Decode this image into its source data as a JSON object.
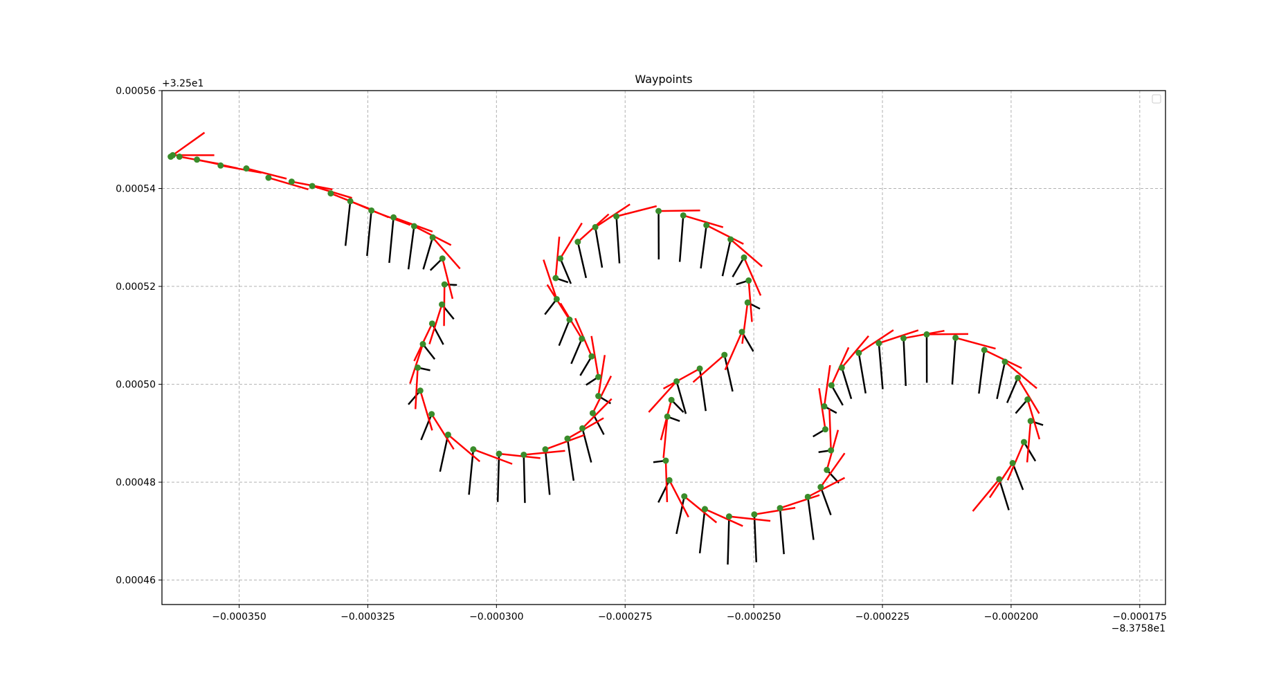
{
  "chart_data": {
    "type": "scatter",
    "title": "Waypoints",
    "xlabel": "",
    "ylabel": "",
    "xlim": [
      -0.000365,
      -0.00017
    ],
    "ylim": [
      0.000455,
      0.00056
    ],
    "x_ticks": [
      -0.00035,
      -0.000325,
      -0.0003,
      -0.000275,
      -0.00025,
      -0.000225,
      -0.0002,
      -0.000175
    ],
    "x_tick_labels": [
      "−0.000350",
      "−0.000325",
      "−0.000300",
      "−0.000275",
      "−0.000250",
      "−0.000225",
      "−0.000200",
      "−0.000175"
    ],
    "y_ticks": [
      0.00046,
      0.00048,
      0.0005,
      0.00052,
      0.00054,
      0.00056
    ],
    "y_tick_labels": [
      "0.00046",
      "0.00048",
      "0.00050",
      "0.00052",
      "0.00054",
      "0.00056"
    ],
    "x_offset_label": "−8.3758e1",
    "y_offset_label": "+3.25e1",
    "grid": true,
    "legend": "top-right",
    "colors": {
      "point": "#3a8c2a",
      "heading": "#ff0000",
      "normal": "#000000",
      "grid": "#b0b0b0"
    },
    "waypoints": [
      [
        -0.0003633,
        0.0005465
      ],
      [
        -0.0003629,
        0.0005468
      ],
      [
        -0.0003616,
        0.0005465
      ],
      [
        -0.0003582,
        0.0005459
      ],
      [
        -0.0003536,
        0.0005447
      ],
      [
        -0.0003486,
        0.0005441
      ],
      [
        -0.0003443,
        0.0005422
      ],
      [
        -0.0003398,
        0.0005414
      ],
      [
        -0.0003358,
        0.0005405
      ],
      [
        -0.0003322,
        0.000539
      ],
      [
        -0.0003284,
        0.0005374
      ],
      [
        -0.0003243,
        0.0005355
      ],
      [
        -0.00032,
        0.0005341
      ],
      [
        -0.000316,
        0.0005323
      ],
      [
        -0.0003124,
        0.00053
      ],
      [
        -0.0003105,
        0.0005257
      ],
      [
        -0.0003101,
        0.0005204
      ],
      [
        -0.0003106,
        0.0005163
      ],
      [
        -0.0003125,
        0.0005124
      ],
      [
        -0.0003143,
        0.0005082
      ],
      [
        -0.0003153,
        0.0005034
      ],
      [
        -0.0003148,
        0.0004987
      ],
      [
        -0.0003126,
        0.0004939
      ],
      [
        -0.0003094,
        0.0004897
      ],
      [
        -0.0003045,
        0.0004867
      ],
      [
        -0.0002995,
        0.0004858
      ],
      [
        -0.0002947,
        0.0004856
      ],
      [
        -0.0002905,
        0.0004867
      ],
      [
        -0.0002862,
        0.0004889
      ],
      [
        -0.0002833,
        0.000491
      ],
      [
        -0.0002813,
        0.0004941
      ],
      [
        -0.0002802,
        0.0004976
      ],
      [
        -0.0002802,
        0.0005015
      ],
      [
        -0.0002815,
        0.0005057
      ],
      [
        -0.0002834,
        0.0005093
      ],
      [
        -0.0002858,
        0.0005132
      ],
      [
        -0.0002883,
        0.0005174
      ],
      [
        -0.0002885,
        0.0005217
      ],
      [
        -0.0002876,
        0.0005257
      ],
      [
        -0.0002842,
        0.0005291
      ],
      [
        -0.0002808,
        0.0005321
      ],
      [
        -0.0002767,
        0.0005343
      ],
      [
        -0.0002685,
        0.0005354
      ],
      [
        -0.0002637,
        0.0005345
      ],
      [
        -0.0002592,
        0.0005325
      ],
      [
        -0.0002545,
        0.0005296
      ],
      [
        -0.0002519,
        0.0005259
      ],
      [
        -0.000251,
        0.0005212
      ],
      [
        -0.0002512,
        0.0005167
      ],
      [
        -0.0002523,
        0.0005107
      ],
      [
        -0.0002557,
        0.000506
      ],
      [
        -0.0002605,
        0.0005032
      ],
      [
        -0.000265,
        0.0005006
      ],
      [
        -0.000266,
        0.0004968
      ],
      [
        -0.0002668,
        0.0004934
      ],
      [
        -0.0002671,
        0.0004844
      ],
      [
        -0.0002664,
        0.0004804
      ],
      [
        -0.0002635,
        0.0004771
      ],
      [
        -0.0002595,
        0.0004745
      ],
      [
        -0.0002548,
        0.000473
      ],
      [
        -0.0002499,
        0.0004734
      ],
      [
        -0.0002449,
        0.0004747
      ],
      [
        -0.0002395,
        0.000477
      ],
      [
        -0.000237,
        0.000479
      ],
      [
        -0.0002358,
        0.0004825
      ],
      [
        -0.000235,
        0.0004865
      ],
      [
        -0.0002361,
        0.0004908
      ],
      [
        -0.0002363,
        0.0004955
      ],
      [
        -0.0002349,
        0.0004998
      ],
      [
        -0.0002329,
        0.0005034
      ],
      [
        -0.0002296,
        0.0005064
      ],
      [
        -0.0002257,
        0.0005084
      ],
      [
        -0.0002209,
        0.0005094
      ],
      [
        -0.0002164,
        0.0005102
      ],
      [
        -0.0002108,
        0.0005095
      ],
      [
        -0.0002052,
        0.000507
      ],
      [
        -0.0002012,
        0.0005046
      ],
      [
        -0.0001987,
        0.0005013
      ],
      [
        -0.0001968,
        0.0004969
      ],
      [
        -0.0001962,
        0.0004925
      ],
      [
        -0.0001975,
        0.0004882
      ],
      [
        -0.0001997,
        0.0004839
      ],
      [
        -0.0002023,
        0.0004806
      ]
    ]
  }
}
